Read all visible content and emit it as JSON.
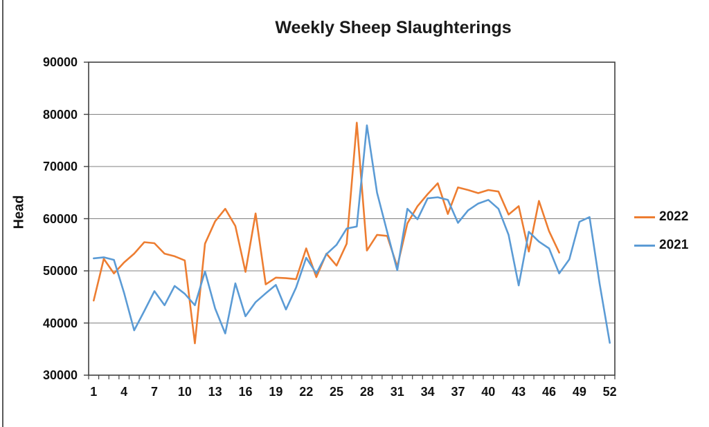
{
  "title": "Weekly Sheep Slaughterings",
  "chart_data": {
    "type": "line",
    "title": "Weekly Sheep Slaughterings",
    "xlabel": "",
    "ylabel": "Head",
    "ylim": [
      30000,
      90000
    ],
    "y_tick_step": 10000,
    "y_tick_labels": [
      "90000",
      "80000",
      "70000",
      "60000",
      "50000",
      "40000",
      "30000"
    ],
    "x_tick_labels": [
      "1",
      "4",
      "7",
      "10",
      "13",
      "16",
      "19",
      "22",
      "25",
      "28",
      "31",
      "34",
      "37",
      "40",
      "43",
      "46",
      "49",
      "52"
    ],
    "grid": "horizontal",
    "legend_position": "right",
    "x": [
      1,
      2,
      3,
      4,
      5,
      6,
      7,
      8,
      9,
      10,
      11,
      12,
      13,
      14,
      15,
      16,
      17,
      18,
      19,
      20,
      21,
      22,
      23,
      24,
      25,
      26,
      27,
      28,
      29,
      30,
      31,
      32,
      33,
      34,
      35,
      36,
      37,
      38,
      39,
      40,
      41,
      42,
      43,
      44,
      45,
      46,
      47,
      48,
      49,
      50,
      51,
      52
    ],
    "series": [
      {
        "name": "2022",
        "color": "#ED7D31",
        "values": [
          44300,
          52300,
          49500,
          51600,
          53300,
          55500,
          55300,
          53300,
          52800,
          52000,
          36100,
          55200,
          59500,
          61900,
          58600,
          49800,
          61000,
          47400,
          48700,
          48600,
          48400,
          54300,
          48800,
          53300,
          51000,
          55200,
          78400,
          53900,
          56900,
          56700,
          50800,
          59100,
          62400,
          64700,
          66800,
          60900,
          66000,
          65500,
          64900,
          65500,
          65200,
          60800,
          62400,
          53700,
          63400,
          57600,
          53500,
          null,
          null,
          null,
          null,
          null
        ]
      },
      {
        "name": "2021",
        "color": "#5B9BD5",
        "values": [
          52400,
          52600,
          52100,
          45800,
          38600,
          42300,
          46100,
          43400,
          47100,
          45600,
          43400,
          49900,
          42800,
          38000,
          47600,
          41300,
          44000,
          45700,
          47300,
          42600,
          46800,
          52500,
          49500,
          53200,
          55000,
          58100,
          58500,
          77900,
          65000,
          57500,
          50100,
          61900,
          59900,
          63900,
          64100,
          63600,
          59200,
          61600,
          62900,
          63600,
          61900,
          56900,
          47200,
          57500,
          55600,
          54300,
          49500,
          52200,
          59400,
          60300,
          47500,
          36200
        ]
      }
    ]
  },
  "colors": {
    "plot_border": "#3f3f3f",
    "gridline": "#808080",
    "tick": "#3f3f3f",
    "text": "#111111",
    "background": "#ffffff"
  }
}
